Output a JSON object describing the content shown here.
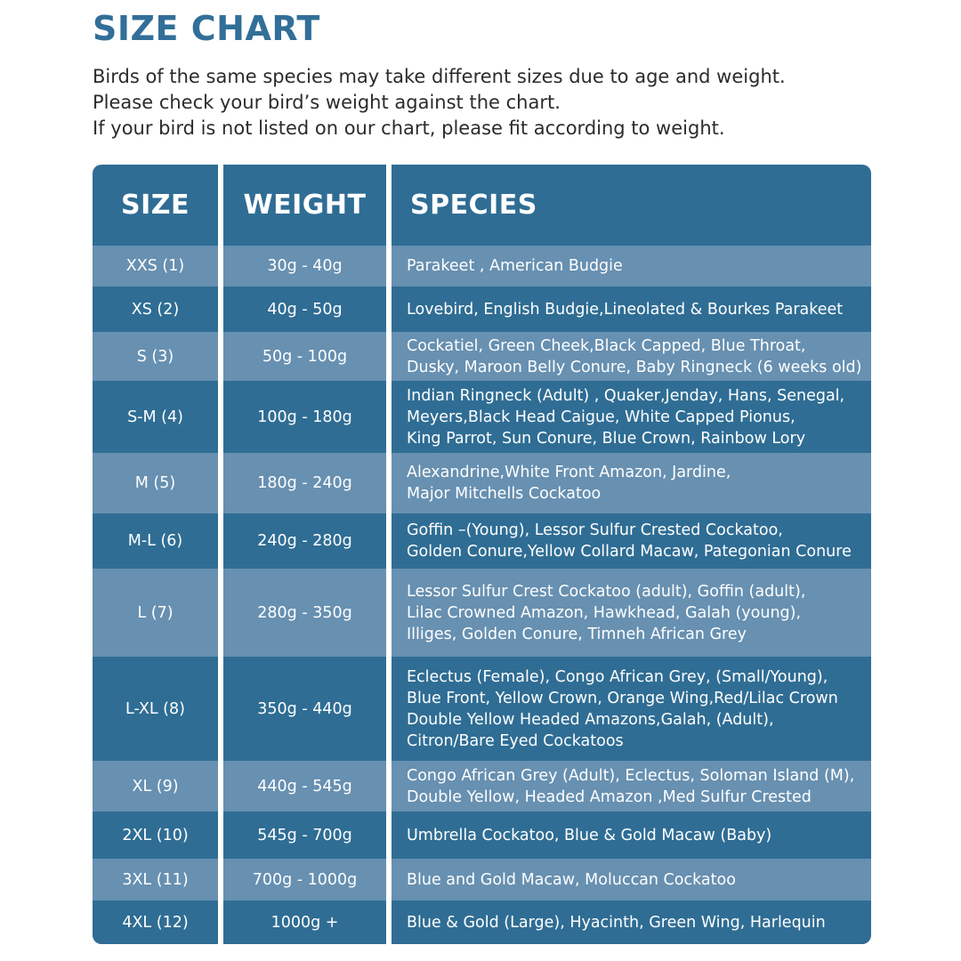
{
  "title": "SIZE CHART",
  "intro": [
    "Birds of the same species may take different sizes due to age and weight.",
    "Please check your bird’s weight against the chart.",
    "If your bird is not listed on our chart, please fit according to weight."
  ],
  "table": {
    "headers": {
      "size": "SIZE",
      "weight": "WEIGHT",
      "species": "SPECIES"
    },
    "rows": [
      {
        "size": "XXS (1)",
        "weight": "30g - 40g",
        "species": [
          "Parakeet , American Budgie"
        ]
      },
      {
        "size": "XS (2)",
        "weight": "40g - 50g",
        "species": [
          "Lovebird, English Budgie,Lineolated & Bourkes Parakeet"
        ]
      },
      {
        "size": "S (3)",
        "weight": "50g - 100g",
        "species": [
          "Cockatiel, Green Cheek,Black Capped, Blue Throat,",
          "Dusky, Maroon Belly Conure, Baby Ringneck (6 weeks old)"
        ]
      },
      {
        "size": "S-M  (4)",
        "weight": "100g - 180g",
        "species": [
          "Indian Ringneck (Adult) , Quaker,Jenday, Hans, Senegal,",
          "Meyers,Black Head Caigue, White Capped Pionus,",
          "King Parrot, Sun Conure, Blue Crown, Rainbow Lory"
        ]
      },
      {
        "size": "M (5)",
        "weight": "180g - 240g",
        "species": [
          "Alexandrine,White Front Amazon, Jardine,",
          "Major Mitchells Cockatoo"
        ]
      },
      {
        "size": "M-L (6)",
        "weight": "240g - 280g",
        "species": [
          "Goffin –(Young), Lessor Sulfur Crested Cockatoo,",
          "Golden Conure,Yellow Collard Macaw, Pategonian Conure"
        ]
      },
      {
        "size": "L (7)",
        "weight": "280g - 350g",
        "species": [
          "Lessor Sulfur Crest Cockatoo (adult), Goffin (adult),",
          "Lilac Crowned Amazon, Hawkhead, Galah (young),",
          "Illiges, Golden Conure, Timneh African Grey"
        ]
      },
      {
        "size": "L-XL (8)",
        "weight": "350g - 440g",
        "species": [
          "Eclectus (Female), Congo African Grey, (Small/Young),",
          "Blue Front, Yellow Crown, Orange Wing,Red/Lilac Crown",
          "Double Yellow Headed Amazons,Galah, (Adult),",
          "Citron/Bare Eyed Cockatoos"
        ]
      },
      {
        "size": "XL (9)",
        "weight": "440g - 545g",
        "species": [
          "Congo African Grey (Adult), Eclectus, Soloman Island (M),",
          "Double Yellow, Headed Amazon ,Med Sulfur Crested"
        ]
      },
      {
        "size": "2XL (10)",
        "weight": "545g - 700g",
        "species": [
          "Umbrella Cockatoo, Blue & Gold Macaw (Baby)"
        ]
      },
      {
        "size": "3XL (11)",
        "weight": "700g - 1000g",
        "species": [
          "Blue and Gold Macaw, Moluccan Cockatoo"
        ]
      },
      {
        "size": "4XL (12)",
        "weight": "1000g +",
        "species": [
          "Blue & Gold (Large), Hyacinth, Green Wing, Harlequin"
        ]
      }
    ]
  },
  "colors": {
    "title": "#326f98",
    "row_dark": "#2f6d94",
    "row_light": "#6790b1",
    "cell_text": "#ffffff"
  }
}
